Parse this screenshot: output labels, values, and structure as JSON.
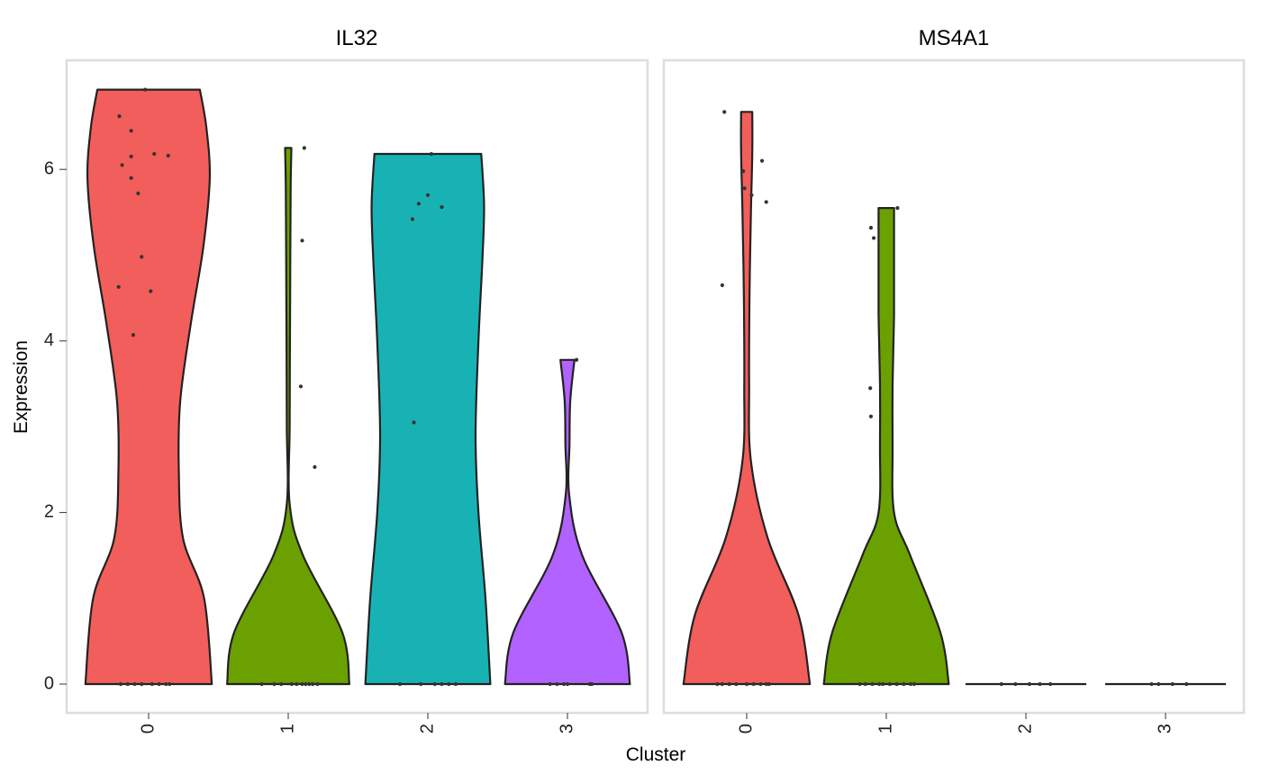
{
  "chart_data": [
    {
      "type": "violin",
      "title": "IL32",
      "xlabel": "Cluster",
      "ylabel": "Expression",
      "categories": [
        "0",
        "1",
        "2",
        "3"
      ],
      "ylim": [
        -0.3,
        7.0
      ],
      "yticks": [
        0,
        2,
        4,
        6
      ],
      "grid": false,
      "legend": "none",
      "colors": [
        "#F25E5B",
        "#6AA100",
        "#18B2B5",
        "#B262FE"
      ],
      "series": [
        {
          "category": "0",
          "max": 6.93,
          "density": [
            [
              0,
              0.9
            ],
            [
              1,
              0.79
            ],
            [
              1.7,
              0.49
            ],
            [
              2.5,
              0.43
            ],
            [
              3.3,
              0.45
            ],
            [
              4.2,
              0.6
            ],
            [
              5.1,
              0.78
            ],
            [
              5.9,
              0.87
            ],
            [
              6.5,
              0.82
            ],
            [
              6.93,
              0.73
            ]
          ],
          "points": [
            [
              -0.4,
              0
            ],
            [
              -0.3,
              0
            ],
            [
              -0.2,
              0
            ],
            [
              -0.1,
              0
            ],
            [
              0.05,
              0
            ],
            [
              0.15,
              0
            ],
            [
              0.25,
              0
            ],
            [
              0.3,
              0
            ],
            [
              -0.42,
              6.62
            ],
            [
              -0.38,
              6.05
            ],
            [
              -0.25,
              6.45
            ],
            [
              -0.25,
              6.15
            ],
            [
              0.08,
              6.18
            ],
            [
              0.28,
              6.16
            ],
            [
              -0.25,
              5.9
            ],
            [
              -0.15,
              5.72
            ],
            [
              -0.1,
              4.98
            ],
            [
              0.03,
              4.58
            ],
            [
              -0.43,
              4.63
            ],
            [
              -0.22,
              4.07
            ],
            [
              -0.05,
              6.93
            ]
          ]
        },
        {
          "category": "1",
          "max": 6.25,
          "density": [
            [
              0,
              0.87
            ],
            [
              0.6,
              0.77
            ],
            [
              1.5,
              0.21
            ],
            [
              2.1,
              0.02
            ],
            [
              3,
              0.02
            ],
            [
              4,
              0.025
            ],
            [
              5,
              0.03
            ],
            [
              5.8,
              0.035
            ],
            [
              6.25,
              0.045
            ]
          ],
          "points": [
            [
              -0.38,
              0
            ],
            [
              -0.2,
              0
            ],
            [
              -0.1,
              0
            ],
            [
              0.05,
              0
            ],
            [
              0.12,
              0
            ],
            [
              0.2,
              0
            ],
            [
              0.25,
              0
            ],
            [
              0.3,
              0
            ],
            [
              0.35,
              0
            ],
            [
              0.42,
              0
            ],
            [
              0.23,
              6.25
            ],
            [
              0.2,
              5.17
            ],
            [
              0.18,
              3.47
            ],
            [
              0.38,
              2.53
            ]
          ]
        },
        {
          "category": "2",
          "max": 6.18,
          "density": [
            [
              0,
              0.89
            ],
            [
              1,
              0.82
            ],
            [
              2,
              0.72
            ],
            [
              2.9,
              0.68
            ],
            [
              4,
              0.72
            ],
            [
              5,
              0.78
            ],
            [
              5.6,
              0.8
            ],
            [
              6.18,
              0.76
            ]
          ],
          "points": [
            [
              -0.4,
              0
            ],
            [
              -0.1,
              0
            ],
            [
              0.1,
              0
            ],
            [
              0.2,
              0
            ],
            [
              0.3,
              0
            ],
            [
              0.4,
              0
            ],
            [
              0.05,
              6.18
            ],
            [
              -0.13,
              5.6
            ],
            [
              -0.22,
              5.42
            ],
            [
              0.0,
              5.7
            ],
            [
              0.2,
              5.56
            ],
            [
              -0.2,
              3.05
            ]
          ]
        },
        {
          "category": "3",
          "max": 3.78,
          "density": [
            [
              0,
              0.89
            ],
            [
              0.6,
              0.77
            ],
            [
              1.5,
              0.21
            ],
            [
              2.2,
              0.025
            ],
            [
              2.8,
              0.03
            ],
            [
              3.3,
              0.04
            ],
            [
              3.78,
              0.1
            ]
          ],
          "points": [
            [
              -0.25,
              0
            ],
            [
              -0.15,
              0
            ],
            [
              -0.05,
              0
            ],
            [
              0.0,
              0
            ],
            [
              0.32,
              0
            ],
            [
              0.35,
              0
            ],
            [
              0.13,
              3.78
            ]
          ]
        }
      ]
    },
    {
      "type": "violin",
      "title": "MS4A1",
      "xlabel": "Cluster",
      "ylabel": "Expression",
      "categories": [
        "0",
        "1",
        "2",
        "3"
      ],
      "ylim": [
        -0.3,
        7.0
      ],
      "yticks": [
        0,
        2,
        4,
        6
      ],
      "grid": false,
      "legend": "none",
      "colors": [
        "#F25E5B",
        "#6AA100",
        "#18B2B5",
        "#B262FE"
      ],
      "series": [
        {
          "category": "0",
          "max": 6.67,
          "density": [
            [
              0,
              0.9
            ],
            [
              0.8,
              0.74
            ],
            [
              1.7,
              0.3
            ],
            [
              2.6,
              0.06
            ],
            [
              3.5,
              0.035
            ],
            [
              4.5,
              0.04
            ],
            [
              5.5,
              0.06
            ],
            [
              6.2,
              0.08
            ],
            [
              6.67,
              0.08
            ]
          ],
          "points": [
            [
              -0.42,
              0
            ],
            [
              -0.35,
              0
            ],
            [
              -0.25,
              0
            ],
            [
              -0.15,
              0
            ],
            [
              0.0,
              0
            ],
            [
              0.1,
              0
            ],
            [
              0.2,
              0
            ],
            [
              0.28,
              0
            ],
            [
              0.32,
              0
            ],
            [
              -0.32,
              6.67
            ],
            [
              -0.05,
              5.98
            ],
            [
              -0.03,
              5.78
            ],
            [
              0.07,
              5.7
            ],
            [
              0.22,
              6.1
            ],
            [
              0.28,
              5.62
            ],
            [
              -0.35,
              4.65
            ]
          ]
        },
        {
          "category": "1",
          "max": 5.55,
          "density": [
            [
              0,
              0.89
            ],
            [
              0.6,
              0.77
            ],
            [
              1.5,
              0.34
            ],
            [
              2.0,
              0.11
            ],
            [
              2.8,
              0.09
            ],
            [
              3.5,
              0.09
            ],
            [
              4.3,
              0.11
            ],
            [
              5.0,
              0.11
            ],
            [
              5.55,
              0.11
            ]
          ],
          "points": [
            [
              -0.38,
              0
            ],
            [
              -0.3,
              0
            ],
            [
              -0.2,
              0
            ],
            [
              -0.1,
              0
            ],
            [
              -0.05,
              0
            ],
            [
              0.05,
              0
            ],
            [
              0.15,
              0
            ],
            [
              0.25,
              0
            ],
            [
              0.35,
              0
            ],
            [
              0.4,
              0
            ],
            [
              0.16,
              5.55
            ],
            [
              -0.22,
              5.32
            ],
            [
              -0.18,
              5.2
            ],
            [
              -0.23,
              3.45
            ],
            [
              -0.22,
              3.12
            ]
          ]
        },
        {
          "category": "2",
          "max": 0,
          "density": [
            [
              0,
              0.86
            ]
          ],
          "points": [
            [
              -0.35,
              0
            ],
            [
              -0.15,
              0
            ],
            [
              0.05,
              0
            ],
            [
              0.2,
              0
            ],
            [
              0.35,
              0
            ]
          ]
        },
        {
          "category": "3",
          "max": 0,
          "density": [
            [
              0,
              0.86
            ]
          ],
          "points": [
            [
              -0.2,
              0
            ],
            [
              -0.1,
              0
            ],
            [
              0.1,
              0
            ],
            [
              0.3,
              0
            ]
          ]
        }
      ]
    }
  ]
}
